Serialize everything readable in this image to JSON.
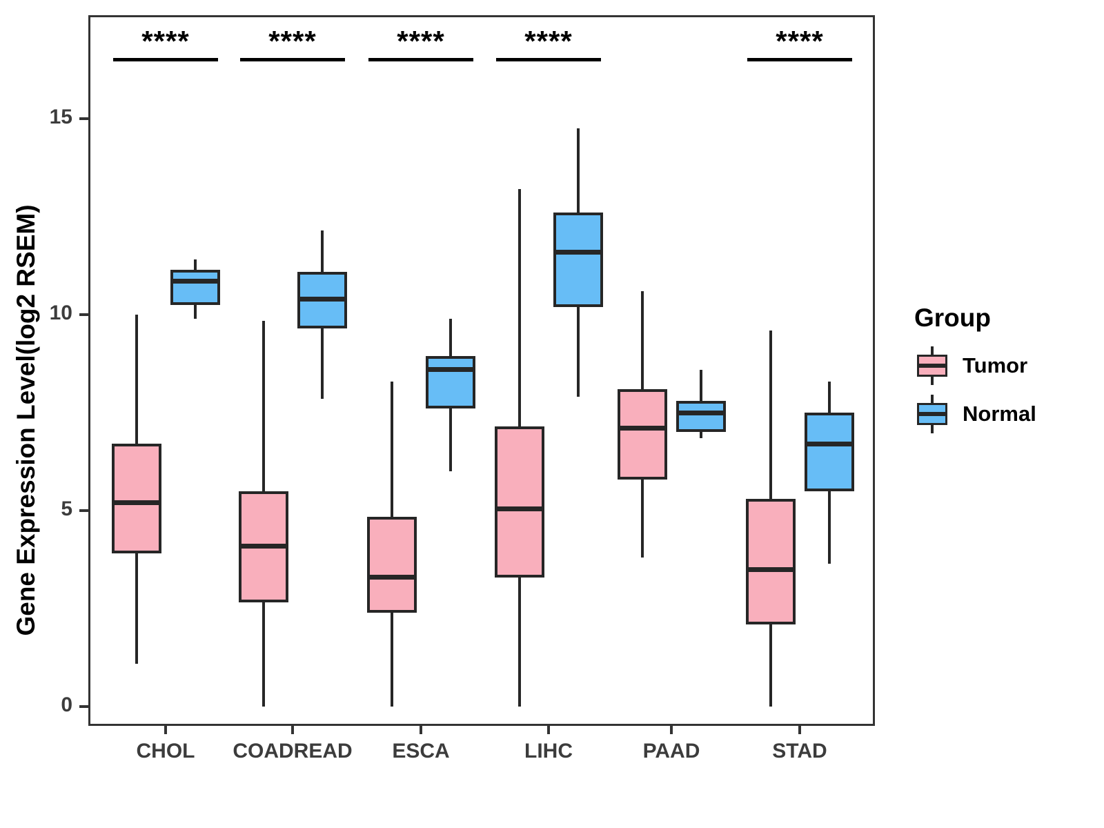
{
  "y_axis": {
    "title": "Gene Expression Level(log2 RSEM)",
    "ticks": [
      0,
      5,
      10,
      15
    ]
  },
  "legend": {
    "title": "Group",
    "entries": [
      {
        "label": "Tumor",
        "color": "#F9AFBC"
      },
      {
        "label": "Normal",
        "color": "#67BDF6"
      }
    ]
  },
  "chart_data": {
    "type": "boxplot",
    "title": "",
    "xlabel": "",
    "ylabel": "Gene Expression Level(log2 RSEM)",
    "ylim": [
      0,
      17.6
    ],
    "y_ticks": [
      0,
      5,
      10,
      15
    ],
    "grid": false,
    "legend_position": "right",
    "categories": [
      "CHOL",
      "COADREAD",
      "ESCA",
      "LIHC",
      "PAAD",
      "STAD"
    ],
    "significance": [
      "****",
      "****",
      "****",
      "****",
      "",
      "****"
    ],
    "stroke_color": "#262626",
    "series": [
      {
        "name": "Tumor",
        "color": "#F9AFBC",
        "boxes": [
          {
            "category": "CHOL",
            "min": 1.1,
            "q1": 3.9,
            "median": 5.2,
            "q3": 6.7,
            "max": 10.0
          },
          {
            "category": "COADREAD",
            "min": 0.0,
            "q1": 2.65,
            "median": 4.1,
            "q3": 5.5,
            "max": 9.85
          },
          {
            "category": "ESCA",
            "min": 0.0,
            "q1": 2.4,
            "median": 3.3,
            "q3": 4.85,
            "max": 8.3
          },
          {
            "category": "LIHC",
            "min": 0.0,
            "q1": 3.3,
            "median": 5.05,
            "q3": 7.15,
            "max": 13.2
          },
          {
            "category": "PAAD",
            "min": 3.8,
            "q1": 5.8,
            "median": 7.1,
            "q3": 8.1,
            "max": 10.6
          },
          {
            "category": "STAD",
            "min": 0.0,
            "q1": 2.1,
            "median": 3.5,
            "q3": 5.3,
            "max": 9.6
          }
        ]
      },
      {
        "name": "Normal",
        "color": "#67BDF6",
        "boxes": [
          {
            "category": "CHOL",
            "min": 9.9,
            "q1": 10.25,
            "median": 10.85,
            "q3": 11.15,
            "max": 11.4
          },
          {
            "category": "COADREAD",
            "min": 7.85,
            "q1": 9.65,
            "median": 10.4,
            "q3": 11.1,
            "max": 12.15
          },
          {
            "category": "ESCA",
            "min": 6.0,
            "q1": 7.6,
            "median": 8.6,
            "q3": 8.95,
            "max": 9.9
          },
          {
            "category": "LIHC",
            "min": 7.9,
            "q1": 10.2,
            "median": 11.6,
            "q3": 12.6,
            "max": 14.75
          },
          {
            "category": "PAAD",
            "min": 6.85,
            "q1": 7.0,
            "median": 7.5,
            "q3": 7.8,
            "max": 8.6
          },
          {
            "category": "STAD",
            "min": 3.65,
            "q1": 5.5,
            "median": 6.7,
            "q3": 7.5,
            "max": 8.3
          }
        ]
      }
    ]
  }
}
